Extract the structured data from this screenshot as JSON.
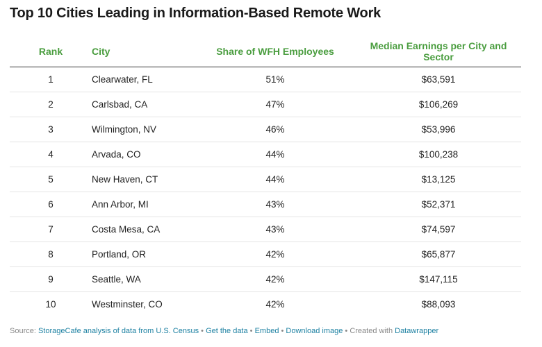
{
  "title": "Top 10 Cities Leading in Information-Based Remote Work",
  "chart_data": {
    "type": "table",
    "columns": [
      "Rank",
      "City",
      "Share of WFH Employees",
      "Median Earnings per City and Sector"
    ],
    "rows": [
      {
        "rank": "1",
        "city": "Clearwater, FL",
        "share": "51%",
        "earnings": "$63,591"
      },
      {
        "rank": "2",
        "city": "Carlsbad, CA",
        "share": "47%",
        "earnings": "$106,269"
      },
      {
        "rank": "3",
        "city": "Wilmington, NV",
        "share": "46%",
        "earnings": "$53,996"
      },
      {
        "rank": "4",
        "city": "Arvada, CO",
        "share": "44%",
        "earnings": "$100,238"
      },
      {
        "rank": "5",
        "city": "New Haven, CT",
        "share": "44%",
        "earnings": "$13,125"
      },
      {
        "rank": "6",
        "city": "Ann Arbor, MI",
        "share": "43%",
        "earnings": "$52,371"
      },
      {
        "rank": "7",
        "city": "Costa Mesa, CA",
        "share": "43%",
        "earnings": "$74,597"
      },
      {
        "rank": "8",
        "city": "Portland, OR",
        "share": "42%",
        "earnings": "$65,877"
      },
      {
        "rank": "9",
        "city": "Seattle, WA",
        "share": "42%",
        "earnings": "$147,115"
      },
      {
        "rank": "10",
        "city": "Westminster, CO",
        "share": "42%",
        "earnings": "$88,093"
      }
    ],
    "header_color": "#4a9d3f"
  },
  "footer": {
    "source_prefix": "Source: ",
    "source_link": "StorageCafe analysis of data from U.S. Census",
    "sep": " • ",
    "get_data": "Get the data",
    "embed": "Embed",
    "download": "Download image",
    "created_with": "Created with ",
    "datawrapper": "Datawrapper",
    "link_color": "#1d81a2"
  }
}
